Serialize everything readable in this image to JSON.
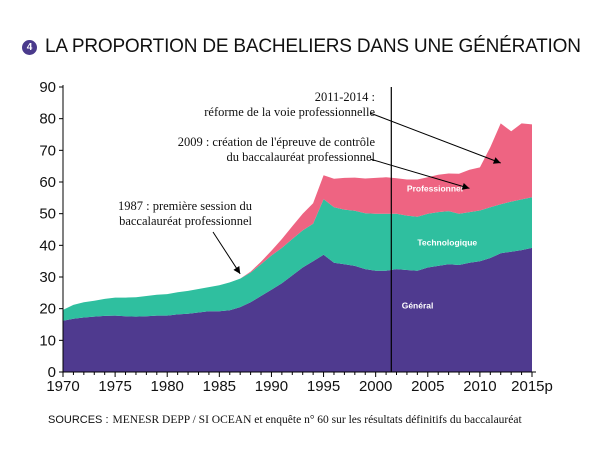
{
  "header": {
    "badge": "4",
    "title": "LA PROPORTION DE BACHELIERS DANS UNE GÉNÉRATION"
  },
  "footer": {
    "sources_label": "SOURCES :",
    "sources_text": "MENESR DEPP / SI OCEAN et enquête n° 60 sur les résultats définitifs du baccalauréat"
  },
  "colors": {
    "general": "#4f3a8f",
    "technologique": "#2fbf9f",
    "professionnel": "#ee6482",
    "badge": "#4a3a8c",
    "marker_line": "#000000"
  },
  "chart_data": {
    "type": "area",
    "stacked": true,
    "title": "LA PROPORTION DE BACHELIERS DANS UNE GÉNÉRATION",
    "xlabel": "",
    "ylabel": "",
    "xlim": [
      1970,
      2015
    ],
    "ylim": [
      0,
      90
    ],
    "yticks": [
      0,
      10,
      20,
      30,
      40,
      50,
      60,
      70,
      80,
      90
    ],
    "xticks": [
      {
        "value": 1970,
        "label": "1970"
      },
      {
        "value": 1975,
        "label": "1975"
      },
      {
        "value": 1980,
        "label": "1980"
      },
      {
        "value": 1985,
        "label": "1985"
      },
      {
        "value": 1990,
        "label": "1990"
      },
      {
        "value": 1995,
        "label": "1995"
      },
      {
        "value": 2000,
        "label": "2000"
      },
      {
        "value": 2005,
        "label": "2005"
      },
      {
        "value": 2010,
        "label": "2010"
      },
      {
        "value": 2015,
        "label": "2015p"
      }
    ],
    "grid": false,
    "x": [
      1970,
      1971,
      1972,
      1973,
      1974,
      1975,
      1976,
      1977,
      1978,
      1979,
      1980,
      1981,
      1982,
      1983,
      1984,
      1985,
      1986,
      1987,
      1988,
      1989,
      1990,
      1991,
      1992,
      1993,
      1994,
      1995,
      1996,
      1997,
      1998,
      1999,
      2000,
      2001,
      2002,
      2003,
      2004,
      2005,
      2006,
      2007,
      2008,
      2009,
      2010,
      2011,
      2012,
      2013,
      2014,
      2015
    ],
    "series": [
      {
        "name": "Général",
        "values": [
          16.2,
          16.8,
          17.2,
          17.5,
          17.7,
          17.8,
          17.6,
          17.5,
          17.6,
          17.8,
          17.8,
          18.2,
          18.4,
          18.8,
          19.2,
          19.2,
          19.5,
          20.5,
          22.0,
          24.0,
          26.0,
          28.0,
          30.5,
          33.0,
          35.0,
          37.0,
          34.5,
          34.0,
          33.5,
          32.5,
          32.0,
          32.0,
          32.5,
          32.2,
          32.0,
          33.0,
          33.5,
          34.0,
          33.8,
          34.5,
          35.0,
          36.0,
          37.5,
          38.0,
          38.5,
          39.2
        ],
        "label_year": 2002.5,
        "label_value": 20
      },
      {
        "name": "Technologique",
        "values": [
          3.4,
          4.4,
          4.8,
          5.0,
          5.4,
          5.7,
          5.9,
          6.1,
          6.4,
          6.6,
          6.8,
          7.0,
          7.2,
          7.4,
          7.6,
          8.2,
          8.8,
          9.0,
          9.4,
          10.0,
          10.8,
          11.2,
          11.5,
          11.7,
          11.8,
          17.6,
          17.5,
          17.3,
          17.4,
          17.6,
          18.0,
          18.0,
          17.5,
          17.2,
          17.0,
          17.0,
          17.0,
          16.8,
          16.2,
          16.0,
          16.0,
          16.0,
          15.5,
          15.8,
          16.0,
          16.0
        ],
        "label_year": 2004,
        "label_value": 40
      },
      {
        "name": "Professionnel",
        "values": [
          0,
          0,
          0,
          0,
          0,
          0,
          0,
          0,
          0,
          0,
          0,
          0,
          0,
          0,
          0,
          0,
          0,
          0,
          0.3,
          0.8,
          1.5,
          2.8,
          4.0,
          5.3,
          6.5,
          7.5,
          9.0,
          10.0,
          10.5,
          11.0,
          11.3,
          11.5,
          11.2,
          11.4,
          11.8,
          11.5,
          11.8,
          11.9,
          12.6,
          13.4,
          13.6,
          19.0,
          25.5,
          22.2,
          24.0,
          23.0
        ],
        "label_year": 2003,
        "label_value": 57
      }
    ],
    "annotations": [
      {
        "lines": [
          "1987 : première session du",
          "baccalauréat professionnel"
        ],
        "target_year": 1987,
        "target_value": 31
      },
      {
        "lines": [
          "2009 : création de l'épreuve de contrôle",
          "du baccalauréat professionnel"
        ],
        "target_year": 2009,
        "target_value": 58
      },
      {
        "lines": [
          "2011-2014 :",
          "réforme de la voie professionnelle"
        ],
        "target_year": 2012,
        "target_value": 66
      }
    ],
    "reference_line": {
      "year": 2001.5
    }
  }
}
